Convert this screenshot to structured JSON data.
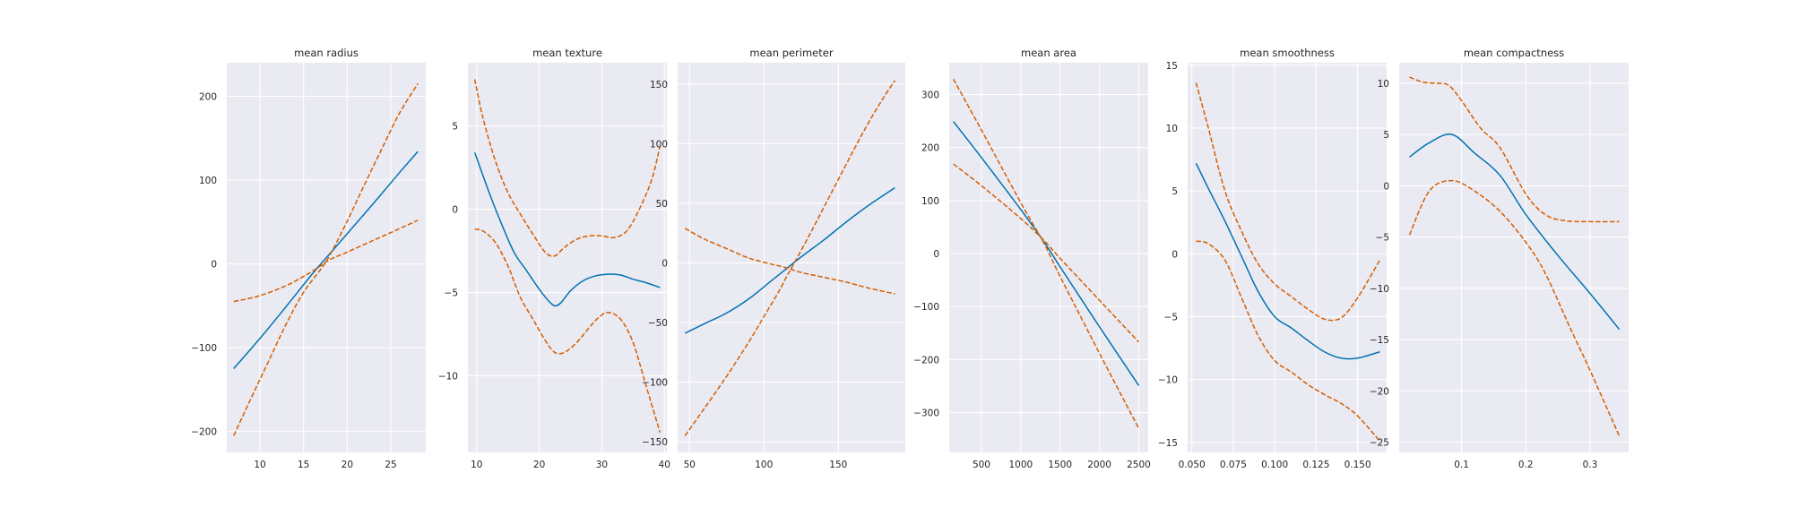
{
  "chart_data": [
    {
      "type": "line",
      "title": "mean radius",
      "xlim": [
        6.2,
        29.0
      ],
      "ylim": [
        -225,
        240
      ],
      "xticks": [
        10,
        15,
        20,
        25
      ],
      "yticks": [
        -200,
        -100,
        0,
        100,
        200
      ],
      "grid": true,
      "series": [
        {
          "style": "solid",
          "color": "#0072B2",
          "x": [
            7,
            10,
            13,
            16,
            18,
            20,
            23,
            26,
            28.1
          ],
          "y": [
            -125,
            -89,
            -51,
            -12,
            12,
            36,
            72,
            109,
            134
          ]
        },
        {
          "style": "dashed",
          "color": "#D55E00",
          "x": [
            7,
            9,
            11,
            13,
            15,
            17,
            18,
            20,
            22,
            24,
            26,
            28.1
          ],
          "y": [
            -205,
            -160,
            -116,
            -72,
            -34,
            -6,
            10,
            51,
            95,
            138,
            180,
            215
          ]
        },
        {
          "style": "dashed",
          "color": "#D55E00",
          "x": [
            7,
            10,
            13,
            15,
            16,
            17,
            18,
            20,
            23,
            26,
            28.1
          ],
          "y": [
            -45,
            -38,
            -26,
            -15,
            -9,
            -2,
            5,
            14,
            28,
            42,
            52
          ]
        }
      ]
    },
    {
      "type": "line",
      "title": "mean texture",
      "xlim": [
        8.6,
        40.4
      ],
      "ylim": [
        -14.6,
        8.8
      ],
      "xticks": [
        10,
        20,
        30,
        40
      ],
      "yticks": [
        -10,
        -5,
        0,
        5
      ],
      "grid": true,
      "series": [
        {
          "style": "solid",
          "color": "#0072B2",
          "x": [
            9.7,
            12,
            14,
            16,
            18,
            20,
            21.5,
            22.5,
            23.5,
            25,
            27,
            29,
            31,
            33,
            35,
            37,
            39.3
          ],
          "y": [
            3.4,
            1.0,
            -0.9,
            -2.6,
            -3.7,
            -4.8,
            -5.5,
            -5.8,
            -5.6,
            -4.9,
            -4.3,
            -4.0,
            -3.9,
            -3.95,
            -4.2,
            -4.4,
            -4.7
          ]
        },
        {
          "style": "dashed",
          "color": "#D55E00",
          "x": [
            9.7,
            11,
            13,
            15,
            17,
            19,
            21,
            22.5,
            24,
            26,
            28,
            30,
            32,
            34,
            36,
            38,
            39.3
          ],
          "y": [
            7.8,
            5.5,
            2.9,
            1.0,
            -0.3,
            -1.5,
            -2.6,
            -2.8,
            -2.3,
            -1.8,
            -1.6,
            -1.6,
            -1.7,
            -1.3,
            0.0,
            1.8,
            3.8
          ]
        },
        {
          "style": "dashed",
          "color": "#D55E00",
          "x": [
            9.7,
            11,
            13,
            15,
            17,
            19,
            21,
            22.5,
            24,
            26,
            28,
            29.5,
            31,
            33,
            35,
            37,
            39.3
          ],
          "y": [
            -1.2,
            -1.3,
            -2.0,
            -3.4,
            -5.3,
            -6.6,
            -7.9,
            -8.6,
            -8.6,
            -8.0,
            -7.1,
            -6.5,
            -6.2,
            -6.6,
            -8.0,
            -10.5,
            -13.4
          ]
        }
      ]
    },
    {
      "type": "line",
      "title": "mean perimeter",
      "xlim": [
        42,
        195
      ],
      "ylim": [
        -159,
        168
      ],
      "xticks": [
        50,
        100,
        150
      ],
      "yticks": [
        -150,
        -100,
        -50,
        0,
        50,
        100,
        150
      ],
      "grid": true,
      "series": [
        {
          "style": "solid",
          "color": "#0072B2",
          "x": [
            47,
            60,
            75,
            90,
            105,
            115,
            125,
            140,
            155,
            170,
            188
          ],
          "y": [
            -59,
            -51,
            -42,
            -30,
            -15,
            -5,
            5,
            19,
            34,
            48,
            63
          ]
        },
        {
          "style": "dashed",
          "color": "#D55E00",
          "x": [
            47,
            60,
            75,
            90,
            100,
            110,
            115,
            120,
            130,
            140,
            150,
            160,
            170,
            180,
            188
          ],
          "y": [
            -145,
            -122,
            -95,
            -66,
            -45,
            -24,
            -12,
            -1,
            22,
            46,
            70,
            94,
            117,
            138,
            153
          ]
        },
        {
          "style": "dashed",
          "color": "#D55E00",
          "x": [
            47,
            60,
            75,
            90,
            105,
            115,
            125,
            140,
            155,
            170,
            188
          ],
          "y": [
            29,
            20,
            12,
            4,
            -1,
            -4,
            -8,
            -12,
            -16,
            -21,
            -26
          ]
        }
      ]
    },
    {
      "type": "line",
      "title": "mean area",
      "xlim": [
        90,
        2620
      ],
      "ylim": [
        -375,
        360
      ],
      "xticks": [
        500,
        1000,
        1500,
        2000,
        2500
      ],
      "yticks": [
        -300,
        -200,
        -100,
        0,
        100,
        200,
        300
      ],
      "grid": true,
      "series": [
        {
          "style": "solid",
          "color": "#0072B2",
          "x": [
            143,
            500,
            1000,
            1300,
            1500,
            2000,
            2501
          ],
          "y": [
            249,
            181,
            83,
            21,
            -25,
            -138,
            -249
          ]
        },
        {
          "style": "dashed",
          "color": "#D55E00",
          "x": [
            143,
            500,
            1000,
            1300,
            1500,
            2000,
            2501
          ],
          "y": [
            329,
            233,
            96,
            18,
            -43,
            -188,
            -330
          ]
        },
        {
          "style": "dashed",
          "color": "#D55E00",
          "x": [
            143,
            500,
            1000,
            1300,
            1500,
            2000,
            2501
          ],
          "y": [
            169,
            128,
            66,
            24,
            -9,
            -88,
            -167
          ]
        }
      ]
    },
    {
      "type": "line",
      "title": "mean smoothness",
      "xlim": [
        0.0475,
        0.1675
      ],
      "ylim": [
        -15.8,
        15.2
      ],
      "xticks": [
        0.05,
        0.075,
        0.1,
        0.125,
        0.15
      ],
      "xtick_labels": [
        "0.050",
        "0.075",
        "0.100",
        "0.125",
        "0.150"
      ],
      "yticks": [
        -15,
        -10,
        -5,
        0,
        5,
        10,
        15
      ],
      "grid": true,
      "series": [
        {
          "style": "solid",
          "color": "#0072B2",
          "x": [
            0.0526,
            0.06,
            0.07,
            0.08,
            0.09,
            0.1,
            0.11,
            0.12,
            0.13,
            0.14,
            0.15,
            0.1634
          ],
          "y": [
            7.2,
            5.2,
            2.6,
            -0.2,
            -3.0,
            -5.0,
            -5.9,
            -6.9,
            -7.8,
            -8.3,
            -8.3,
            -7.8
          ]
        },
        {
          "style": "dashed",
          "color": "#D55E00",
          "x": [
            0.0526,
            0.06,
            0.07,
            0.08,
            0.09,
            0.1,
            0.11,
            0.12,
            0.13,
            0.14,
            0.15,
            0.1634
          ],
          "y": [
            13.6,
            10.0,
            5.0,
            1.8,
            -0.8,
            -2.4,
            -3.4,
            -4.4,
            -5.2,
            -5.1,
            -3.5,
            -0.5
          ]
        },
        {
          "style": "dashed",
          "color": "#D55E00",
          "x": [
            0.0526,
            0.06,
            0.07,
            0.08,
            0.09,
            0.1,
            0.11,
            0.12,
            0.13,
            0.14,
            0.15,
            0.1634
          ],
          "y": [
            1.0,
            0.8,
            -0.5,
            -3.5,
            -6.5,
            -8.5,
            -9.4,
            -10.4,
            -11.2,
            -11.9,
            -12.9,
            -14.9
          ]
        }
      ]
    },
    {
      "type": "line",
      "title": "mean compactness",
      "xlim": [
        0.003,
        0.36
      ],
      "ylim": [
        -26.0,
        12.0
      ],
      "xticks": [
        0.1,
        0.2,
        0.3
      ],
      "xtick_labels": [
        "0.1",
        "0.2",
        "0.3"
      ],
      "yticks": [
        -25,
        -20,
        -15,
        -10,
        -5,
        0,
        5,
        10
      ],
      "grid": true,
      "series": [
        {
          "style": "solid",
          "color": "#0072B2",
          "x": [
            0.019,
            0.05,
            0.085,
            0.12,
            0.16,
            0.2,
            0.25,
            0.3,
            0.3454
          ],
          "y": [
            2.8,
            4.2,
            5.0,
            3.2,
            1.0,
            -2.8,
            -6.8,
            -10.5,
            -14.0
          ]
        },
        {
          "style": "dashed",
          "color": "#D55E00",
          "x": [
            0.019,
            0.04,
            0.06,
            0.08,
            0.1,
            0.13,
            0.16,
            0.2,
            0.23,
            0.26,
            0.3,
            0.3454
          ],
          "y": [
            10.6,
            10.1,
            10.0,
            9.8,
            8.3,
            5.6,
            3.7,
            -0.8,
            -2.8,
            -3.4,
            -3.5,
            -3.5
          ]
        },
        {
          "style": "dashed",
          "color": "#D55E00",
          "x": [
            0.019,
            0.05,
            0.085,
            0.12,
            0.16,
            0.2,
            0.23,
            0.27,
            0.3,
            0.3454
          ],
          "y": [
            -4.8,
            -0.5,
            0.5,
            -0.5,
            -2.5,
            -5.5,
            -8.5,
            -14.0,
            -18.0,
            -24.4
          ]
        }
      ]
    }
  ]
}
